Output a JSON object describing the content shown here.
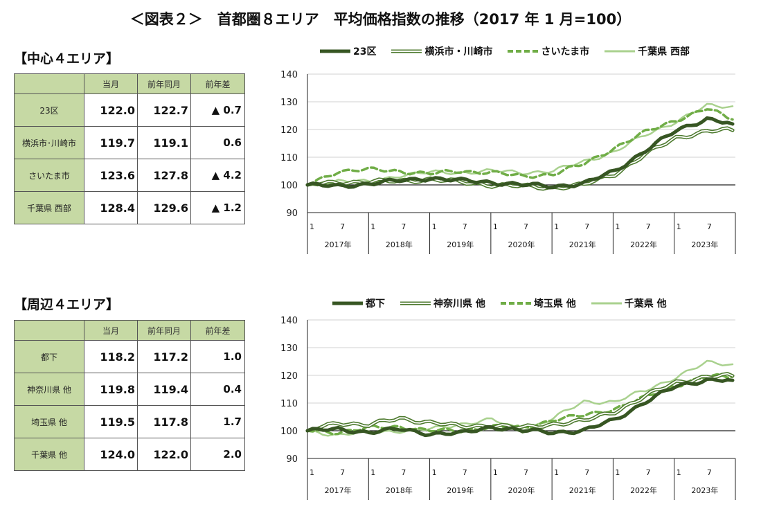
{
  "title": "＜図表２＞　首都圏８エリア　平均価格指数の推移（2017 年 1 月=100）",
  "colors": {
    "series1": "#375623",
    "series2": "#4d7a2e",
    "series3": "#70ad47",
    "series4": "#a9d18e",
    "table_header": "#c6d9a4"
  },
  "tables": [
    {
      "heading": "【中心４エリア】",
      "columns": [
        "当月",
        "前年同月",
        "前年差"
      ],
      "rows": [
        {
          "area": "23区",
          "current": "122.0",
          "prev": "122.7",
          "diff": "▲ 0.7"
        },
        {
          "area": "横浜市･川崎市",
          "current": "119.7",
          "prev": "119.1",
          "diff": "0.6"
        },
        {
          "area": "さいたま市",
          "current": "123.6",
          "prev": "127.8",
          "diff": "▲ 4.2"
        },
        {
          "area": "千葉県 西部",
          "current": "128.4",
          "prev": "129.6",
          "diff": "▲ 1.2"
        }
      ]
    },
    {
      "heading": "【周辺４エリア】",
      "columns": [
        "当月",
        "前年同月",
        "前年差"
      ],
      "rows": [
        {
          "area": "都下",
          "current": "118.2",
          "prev": "117.2",
          "diff": "1.0"
        },
        {
          "area": "神奈川県 他",
          "current": "119.8",
          "prev": "119.4",
          "diff": "0.4"
        },
        {
          "area": "埼玉県 他",
          "current": "119.5",
          "prev": "117.8",
          "diff": "1.7"
        },
        {
          "area": "千葉県 他",
          "current": "124.0",
          "prev": "122.0",
          "diff": "2.0"
        }
      ]
    }
  ],
  "chart_data": [
    {
      "type": "line",
      "title": "中心４エリア",
      "ylim": [
        90,
        140
      ],
      "yticks": [
        90,
        100,
        110,
        120,
        130,
        140
      ],
      "reference_line": 100,
      "month_ticks": [
        "1",
        "7"
      ],
      "years": [
        "2017年",
        "2018年",
        "2019年",
        "2020年",
        "2021年",
        "2022年",
        "2023年"
      ],
      "legend_position": "top",
      "x_anchors": [
        0,
        6,
        12,
        18,
        24,
        30,
        36,
        42,
        48,
        54,
        60,
        66,
        72,
        78,
        83
      ],
      "series": [
        {
          "name": "23区",
          "style": "thick",
          "values": [
            100,
            99.5,
            100.5,
            101.5,
            102.5,
            101.5,
            101,
            100,
            99.5,
            100.5,
            105,
            112.5,
            119.5,
            124,
            122
          ]
        },
        {
          "name": "横浜市・川崎市",
          "style": "double",
          "values": [
            100,
            101,
            101,
            101.5,
            102,
            101,
            100,
            99.5,
            99,
            100,
            104,
            111,
            117,
            119.5,
            119.7
          ]
        },
        {
          "name": "さいたま市",
          "style": "dashed",
          "values": [
            100,
            105,
            105.5,
            105,
            104,
            105,
            104.5,
            103,
            104,
            107.5,
            113.5,
            119,
            123.5,
            127.5,
            123.6
          ]
        },
        {
          "name": "千葉県 西部",
          "style": "light",
          "values": [
            100,
            101.5,
            101,
            103.5,
            104.5,
            104.5,
            105,
            104.5,
            105,
            108.5,
            112,
            118,
            123,
            128.5,
            128.4
          ]
        }
      ]
    },
    {
      "type": "line",
      "title": "周辺４エリア",
      "ylim": [
        90,
        140
      ],
      "yticks": [
        90,
        100,
        110,
        120,
        130,
        140
      ],
      "reference_line": 100,
      "month_ticks": [
        "1",
        "7"
      ],
      "years": [
        "2017年",
        "2018年",
        "2019年",
        "2020年",
        "2021年",
        "2022年",
        "2023年"
      ],
      "legend_position": "top",
      "x_anchors": [
        0,
        6,
        12,
        18,
        24,
        30,
        36,
        42,
        48,
        54,
        60,
        66,
        72,
        78,
        83
      ],
      "series": [
        {
          "name": "都下",
          "style": "thick",
          "values": [
            100,
            100.5,
            99.5,
            100.5,
            99,
            99,
            101.5,
            100,
            99.5,
            100,
            104,
            110.5,
            116,
            118.5,
            118.2
          ]
        },
        {
          "name": "神奈川県 他",
          "style": "double",
          "values": [
            100,
            103,
            102,
            104.5,
            103,
            101.5,
            102,
            101,
            102.5,
            103.5,
            107,
            112.5,
            117.5,
            119.5,
            119.8
          ]
        },
        {
          "name": "埼玉県 他",
          "style": "dashed",
          "values": [
            100,
            99.5,
            101,
            101.5,
            100,
            100,
            101.5,
            101,
            104,
            105.5,
            108,
            112,
            116.5,
            119.5,
            119.5
          ]
        },
        {
          "name": "千葉県 他",
          "style": "light",
          "values": [
            100,
            98.5,
            99.5,
            100,
            100.5,
            102.5,
            104,
            100,
            104.5,
            110.5,
            110.5,
            114.5,
            119.5,
            124.5,
            124
          ]
        }
      ]
    }
  ]
}
